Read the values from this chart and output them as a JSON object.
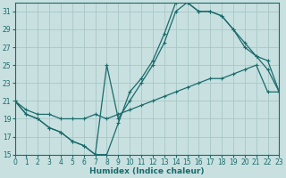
{
  "xlabel": "Humidex (Indice chaleur)",
  "xlim": [
    0,
    23
  ],
  "ylim": [
    15,
    32
  ],
  "xticks": [
    0,
    1,
    2,
    3,
    4,
    5,
    6,
    7,
    8,
    9,
    10,
    11,
    12,
    13,
    14,
    15,
    16,
    17,
    18,
    19,
    20,
    21,
    22,
    23
  ],
  "yticks": [
    15,
    17,
    19,
    21,
    23,
    25,
    27,
    29,
    31
  ],
  "bg_color": "#c8e0e0",
  "grid_color": "#a8c8c8",
  "line_color": "#1a6b6b",
  "line1_x": [
    0,
    1,
    2,
    3,
    4,
    5,
    6,
    7,
    8,
    9,
    10,
    11,
    12,
    13,
    14,
    15,
    16,
    17,
    18,
    19,
    20,
    21,
    22,
    23
  ],
  "line1_y": [
    21,
    19.5,
    19,
    18,
    17.5,
    16.5,
    16,
    15,
    15,
    18.5,
    22,
    23.5,
    25.5,
    28.5,
    32,
    32,
    31,
    31,
    30.5,
    29,
    27.5,
    26,
    24.5,
    22
  ],
  "line2_x": [
    0,
    1,
    2,
    3,
    4,
    5,
    6,
    7,
    8,
    9,
    10,
    11,
    12,
    13,
    14,
    15,
    16,
    17,
    18,
    19,
    20,
    21,
    22,
    23
  ],
  "line2_y": [
    21,
    19.5,
    19,
    18,
    17.5,
    16.5,
    16,
    15,
    25,
    19,
    21,
    23,
    25,
    27.5,
    31,
    32,
    31,
    31,
    30.5,
    29,
    27,
    26,
    25.5,
    22
  ],
  "line3_x": [
    0,
    1,
    2,
    3,
    4,
    5,
    6,
    7,
    8,
    9,
    10,
    11,
    12,
    13,
    14,
    15,
    16,
    17,
    18,
    19,
    20,
    21,
    22,
    23
  ],
  "line3_y": [
    21,
    20,
    19.5,
    19.5,
    19,
    19,
    19,
    19.5,
    19,
    19.5,
    20,
    20.5,
    21,
    21.5,
    22,
    22.5,
    23,
    23.5,
    23.5,
    24,
    24.5,
    25,
    22,
    22
  ]
}
